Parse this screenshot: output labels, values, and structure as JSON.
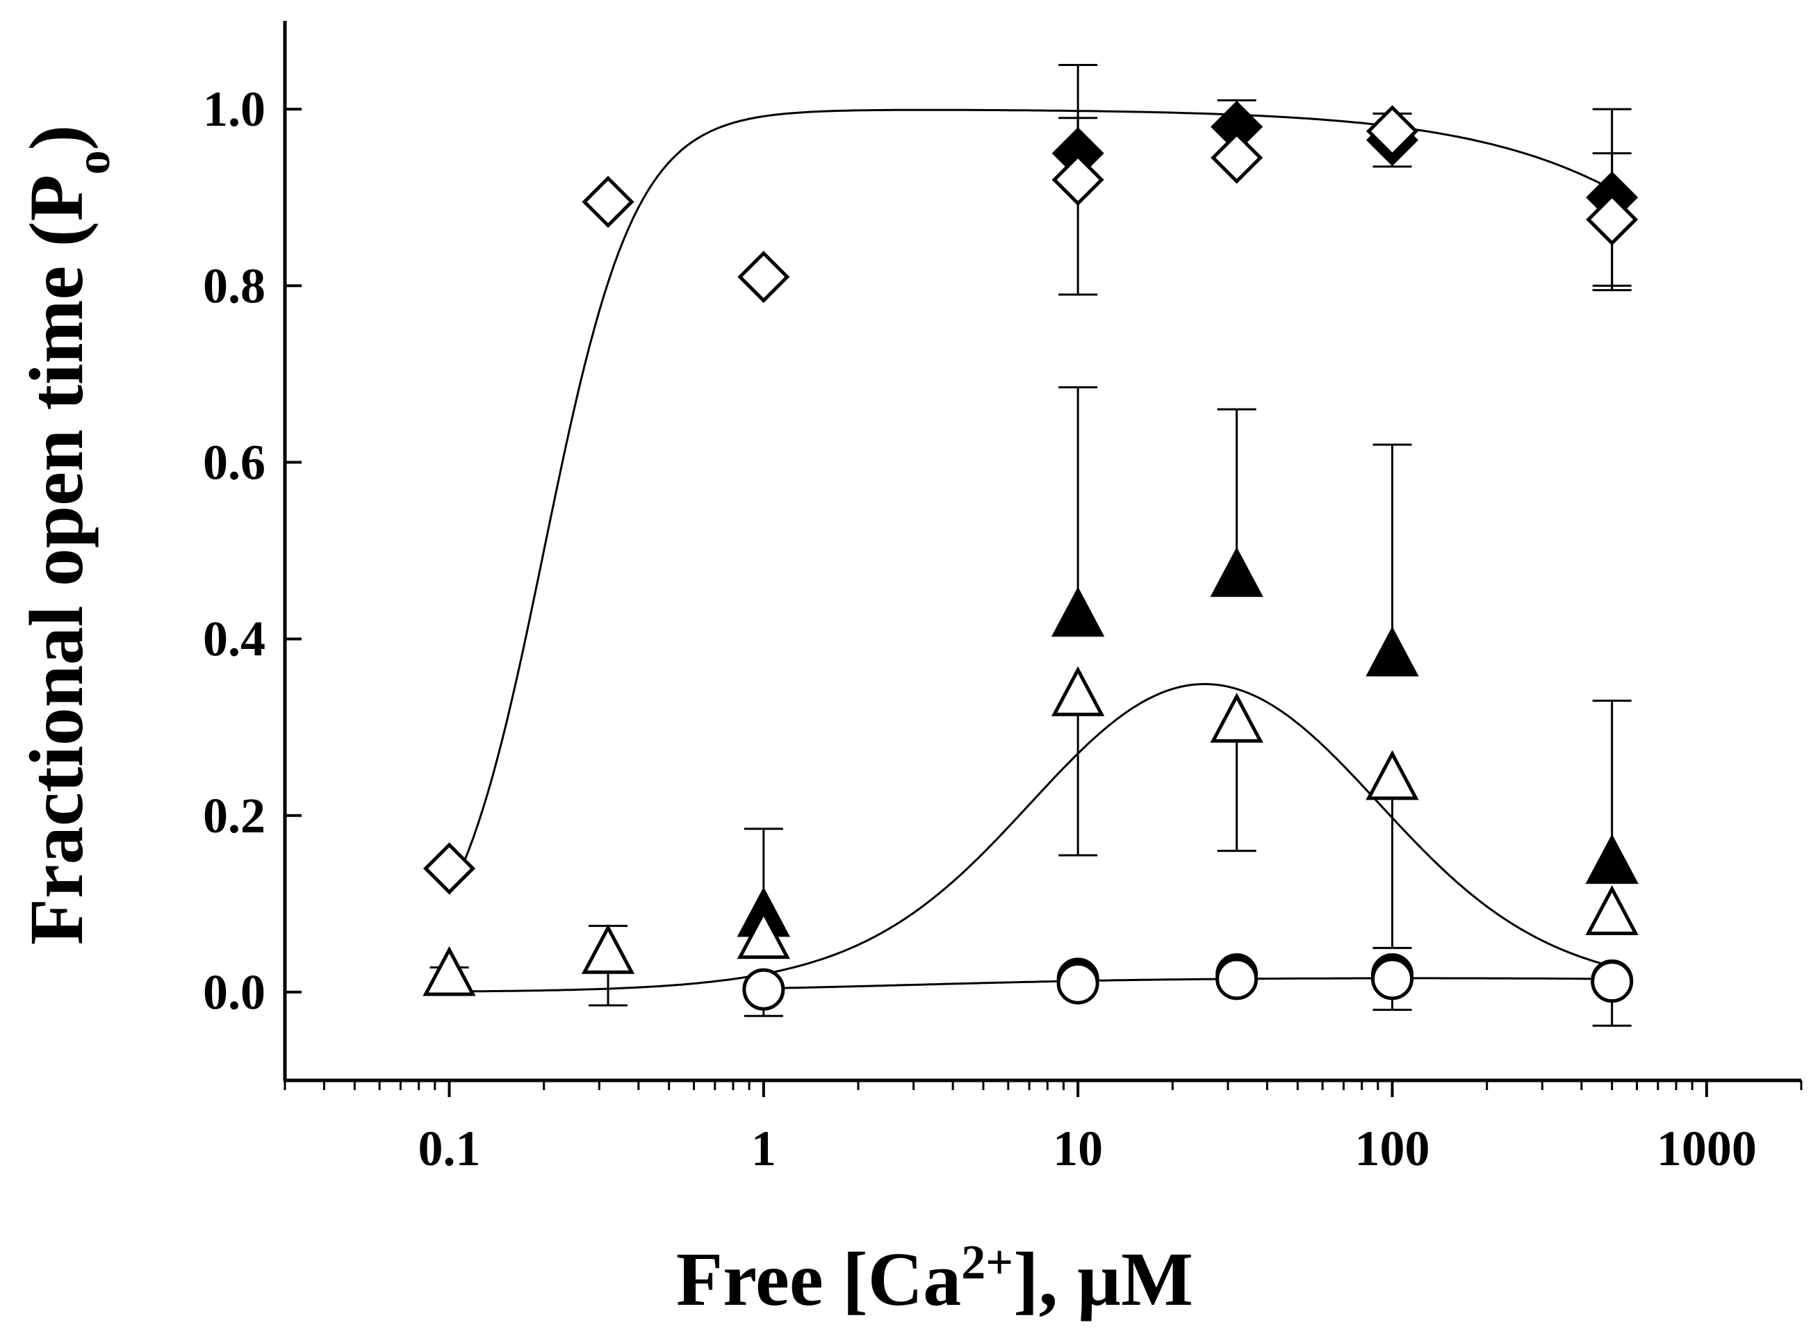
{
  "chart_data": {
    "type": "scatter",
    "title": "",
    "xlabel_main": "Free [Ca",
    "xlabel_sup": "2+",
    "xlabel_tail": "], µM",
    "ylabel_main": "Fractional open time (P",
    "ylabel_sub": "o",
    "ylabel_tail": ")",
    "xscale": "log",
    "xlim": [
      0.03,
      2000
    ],
    "ylim": [
      -0.1,
      1.1
    ],
    "x_ticks": [
      0.1,
      1,
      10,
      100,
      1000
    ],
    "x_tick_labels": [
      "0.1",
      "1",
      "10",
      "100",
      "1000"
    ],
    "y_ticks": [
      0.0,
      0.2,
      0.4,
      0.6,
      0.8,
      1.0
    ],
    "y_tick_labels": [
      "0.0",
      "0.2",
      "0.4",
      "0.6",
      "0.8",
      "1.0"
    ],
    "grid": false,
    "legend": "none",
    "series": [
      {
        "name": "filled diamond",
        "marker": "diamond",
        "filled": true,
        "x": [
          10,
          32,
          100,
          500
        ],
        "y": [
          0.95,
          0.98,
          0.965,
          0.9
        ],
        "err_up": [
          0.1,
          0.03,
          0.03,
          0.1
        ],
        "err_down": [
          0,
          0,
          0.03,
          0.1
        ]
      },
      {
        "name": "open diamond",
        "marker": "diamond",
        "filled": false,
        "x": [
          0.1,
          0.32,
          1,
          10,
          32,
          100,
          500
        ],
        "y": [
          0.14,
          0.895,
          0.81,
          0.92,
          0.945,
          0.975,
          0.875
        ],
        "err_up": [
          0,
          0,
          0,
          0.07,
          0,
          0,
          0.075
        ],
        "err_down": [
          0,
          0,
          0,
          0.13,
          0,
          0,
          0.08
        ]
      },
      {
        "name": "filled triangle",
        "marker": "triangle",
        "filled": true,
        "x": [
          1,
          10,
          32,
          100,
          500
        ],
        "y": [
          0.085,
          0.425,
          0.47,
          0.38,
          0.145
        ],
        "err_up": [
          0.1,
          0.26,
          0.19,
          0.24,
          0.185
        ],
        "err_down": [
          0,
          0,
          0,
          0,
          0
        ]
      },
      {
        "name": "open triangle",
        "marker": "triangle",
        "filled": false,
        "x": [
          0.1,
          0.32,
          1,
          10,
          32,
          100,
          500
        ],
        "y": [
          0.018,
          0.043,
          0.06,
          0.335,
          0.305,
          0.24,
          0.087
        ],
        "err_up": [
          0.01,
          0.032,
          0,
          0,
          0,
          0,
          0
        ],
        "err_down": [
          0,
          0.058,
          0,
          0.18,
          0.145,
          0.19,
          0
        ]
      },
      {
        "name": "filled circle",
        "marker": "circle",
        "filled": true,
        "x": [
          10,
          32,
          100,
          500
        ],
        "y": [
          0.015,
          0.02,
          0.02,
          0.013
        ],
        "err_up": [
          0,
          0,
          0,
          0
        ],
        "err_down": [
          0,
          0,
          0,
          0
        ]
      },
      {
        "name": "open circle",
        "marker": "circle",
        "filled": false,
        "x": [
          1,
          10,
          32,
          100,
          500
        ],
        "y": [
          0.003,
          0.01,
          0.015,
          0.015,
          0.012
        ],
        "err_up": [
          0,
          0,
          0,
          0,
          0
        ],
        "err_down": [
          0.03,
          0,
          0,
          0.035,
          0.05
        ]
      }
    ],
    "fit_curves": [
      {
        "name": "diamond fit",
        "model": "bell",
        "x_range": [
          0.1,
          500
        ],
        "A": 1.0,
        "Ka": 0.2,
        "na": 3.0,
        "Ki": 5000,
        "ni": 1.0
      },
      {
        "name": "triangle fit",
        "model": "bell",
        "x_range": [
          0.1,
          500
        ],
        "A": 0.484,
        "Ka": 8,
        "na": 1.5,
        "Ki": 80,
        "ni": 1.5
      },
      {
        "name": "circle fit",
        "model": "bell",
        "x_range": [
          1,
          500
        ],
        "A": 0.0165,
        "Ka": 3,
        "na": 1.0,
        "Ki": 5000,
        "ni": 1.0
      }
    ]
  }
}
